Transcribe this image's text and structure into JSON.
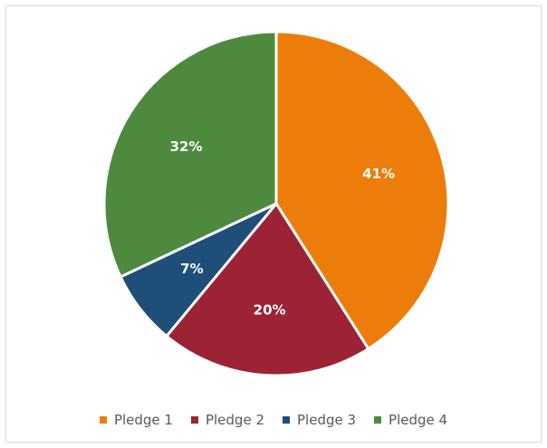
{
  "chart_data": {
    "type": "pie",
    "start_angle_deg": 0,
    "direction": "clockwise",
    "slices": [
      {
        "name": "Pledge 1",
        "value": 41,
        "label": "41%",
        "color": "#ED7D0A"
      },
      {
        "name": "Pledge 2",
        "value": 20,
        "label": "20%",
        "color": "#9B2335"
      },
      {
        "name": "Pledge 3",
        "value": 7,
        "label": "7%",
        "color": "#1F4E79"
      },
      {
        "name": "Pledge 4",
        "value": 32,
        "label": "32%",
        "color": "#4E8A3E"
      }
    ],
    "legend": {
      "position": "bottom",
      "items": [
        "Pledge 1",
        "Pledge 2",
        "Pledge 3",
        "Pledge 4"
      ]
    }
  }
}
